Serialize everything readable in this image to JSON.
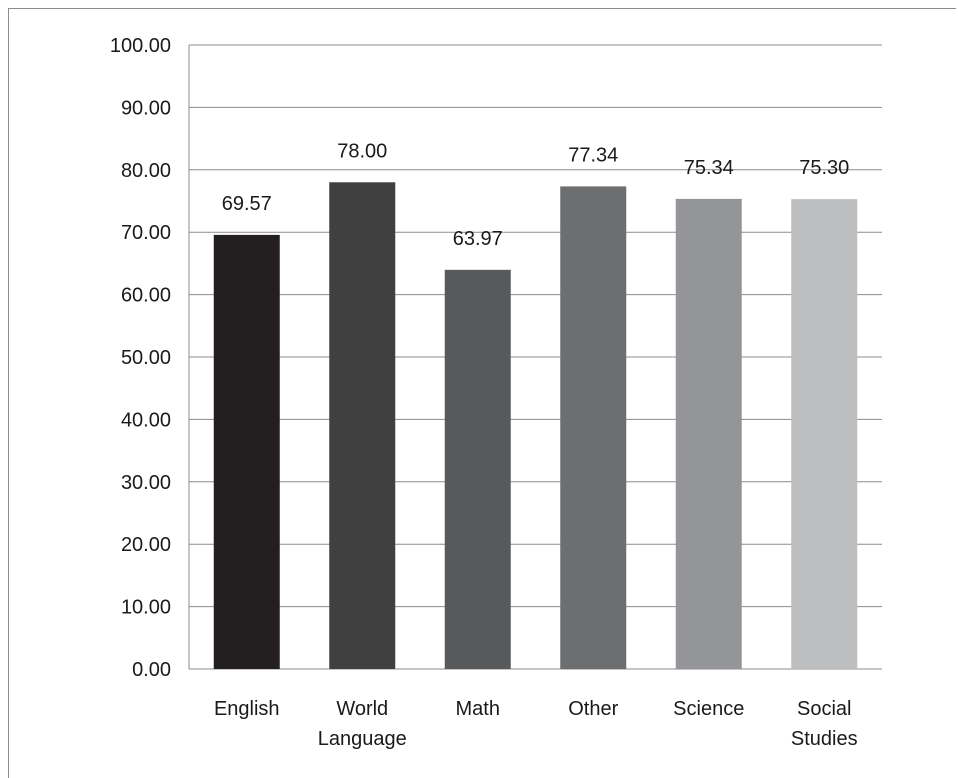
{
  "chart_data": {
    "type": "bar",
    "categories": [
      [
        "English"
      ],
      [
        "World",
        "Language"
      ],
      [
        "Math"
      ],
      [
        "Other"
      ],
      [
        "Science"
      ],
      [
        "Social",
        "Studies"
      ]
    ],
    "values": [
      69.57,
      78.0,
      63.97,
      77.34,
      75.34,
      75.3
    ],
    "value_labels": [
      "69.57",
      "78.00",
      "63.97",
      "77.34",
      "75.34",
      "75.30"
    ],
    "bar_colors": [
      "#231f20",
      "#404040",
      "#58595b",
      "#6d6e70",
      "#939598",
      "#bcbec0"
    ],
    "ylim": [
      0,
      100
    ],
    "ytick_labels": [
      "0.00",
      "10.00",
      "20.00",
      "30.00",
      "40.00",
      "50.00",
      "60.00",
      "70.00",
      "80.00",
      "90.00",
      "100.00"
    ],
    "title": "",
    "xlabel": "",
    "ylabel": "",
    "grid": true,
    "legend": "none"
  }
}
